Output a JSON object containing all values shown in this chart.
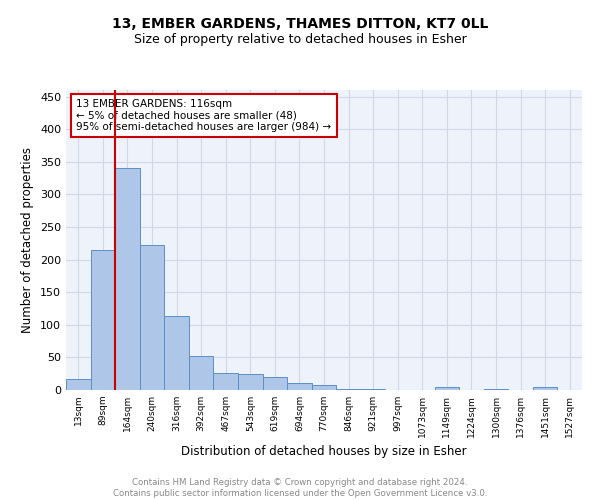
{
  "title": "13, EMBER GARDENS, THAMES DITTON, KT7 0LL",
  "subtitle": "Size of property relative to detached houses in Esher",
  "xlabel": "Distribution of detached houses by size in Esher",
  "ylabel": "Number of detached properties",
  "categories": [
    "13sqm",
    "89sqm",
    "164sqm",
    "240sqm",
    "316sqm",
    "392sqm",
    "467sqm",
    "543sqm",
    "619sqm",
    "694sqm",
    "770sqm",
    "846sqm",
    "921sqm",
    "997sqm",
    "1073sqm",
    "1149sqm",
    "1224sqm",
    "1300sqm",
    "1376sqm",
    "1451sqm",
    "1527sqm"
  ],
  "values": [
    17,
    215,
    340,
    222,
    113,
    52,
    26,
    25,
    20,
    10,
    7,
    2,
    1,
    0,
    0,
    4,
    0,
    2,
    0,
    4,
    0
  ],
  "bar_color": "#aec6e8",
  "bar_edge_color": "#5b8fc9",
  "grid_color": "#d0d8e8",
  "background_color": "#eef2fa",
  "vline_color": "#cc0000",
  "annotation_text": "13 EMBER GARDENS: 116sqm\n← 5% of detached houses are smaller (48)\n95% of semi-detached houses are larger (984) →",
  "annotation_box_color": "#cc0000",
  "ylim": [
    0,
    460
  ],
  "yticks": [
    0,
    50,
    100,
    150,
    200,
    250,
    300,
    350,
    400,
    450
  ],
  "footer": "Contains HM Land Registry data © Crown copyright and database right 2024.\nContains public sector information licensed under the Open Government Licence v3.0.",
  "title_fontsize": 10,
  "subtitle_fontsize": 9
}
